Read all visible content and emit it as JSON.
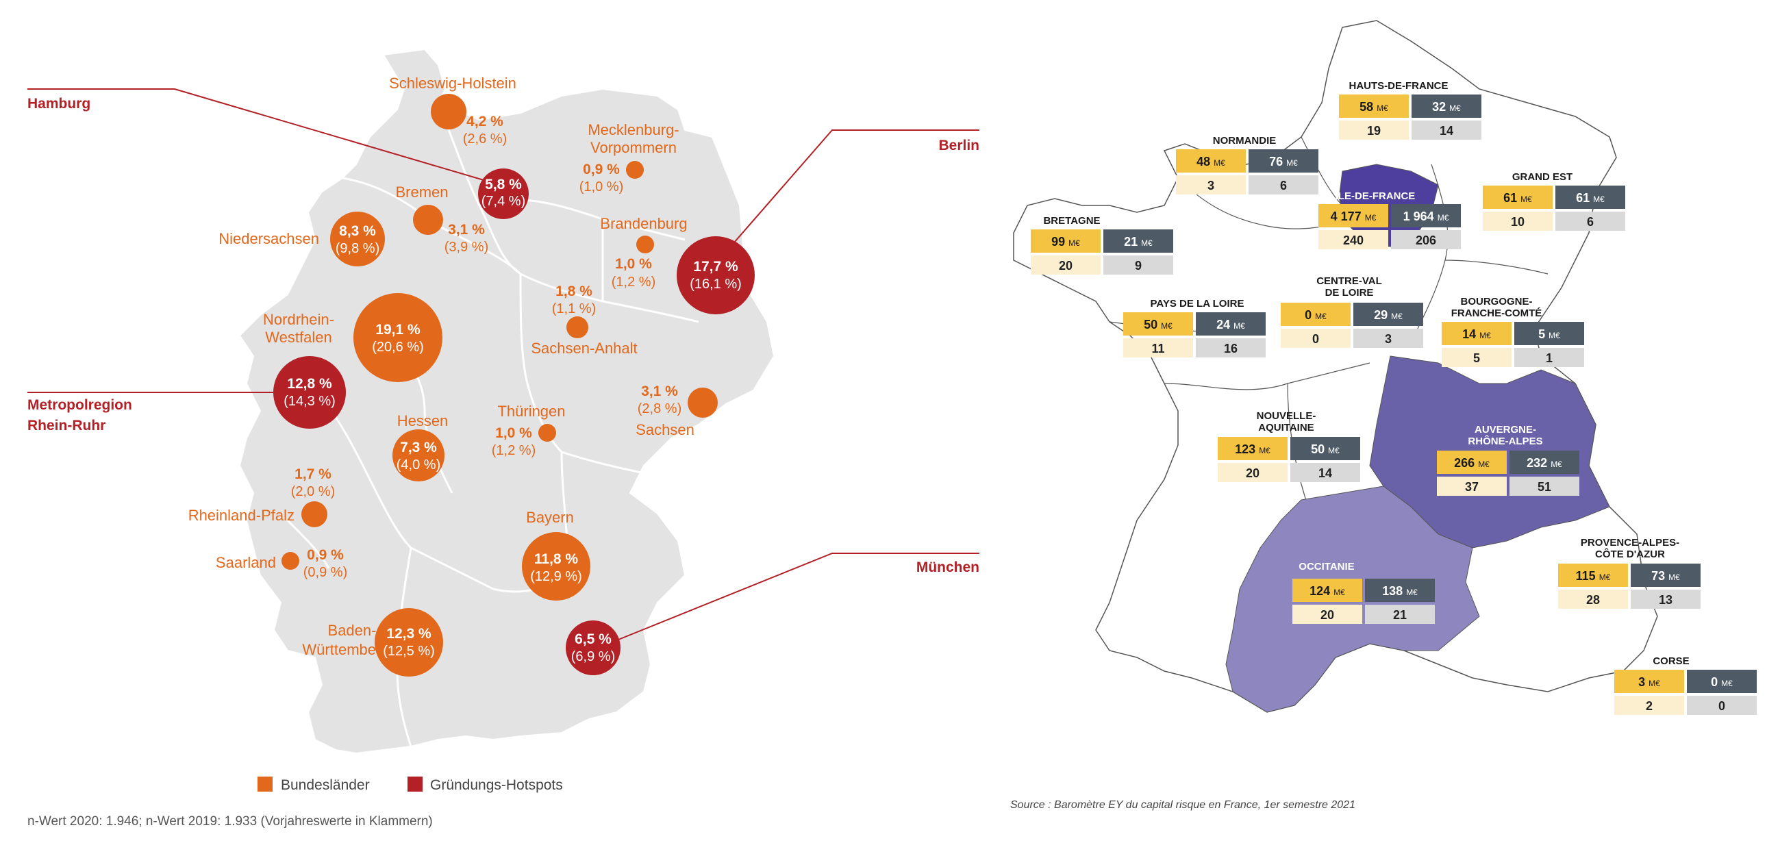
{
  "germany": {
    "states": [
      {
        "name": "Schleswig-Holstein",
        "value": "4,2 %",
        "prev": "(2,6 %)"
      },
      {
        "name": "Mecklenburg-\nVorpommern",
        "value": "0,9 %",
        "prev": "(1,0 %)"
      },
      {
        "name": "Bremen",
        "value": "3,1 %",
        "prev": "(3,9 %)"
      },
      {
        "name": "Niedersachsen",
        "value": "8,3 %",
        "prev": "(9,8 %)"
      },
      {
        "name": "Brandenburg",
        "value": "1,0 %",
        "prev": "(1,2 %)"
      },
      {
        "name": "Sachsen-Anhalt",
        "value": "1,8 %",
        "prev": "(1,1 %)"
      },
      {
        "name": "Nordrhein-\nWestfalen",
        "value": "19,1 %",
        "prev": "(20,6 %)"
      },
      {
        "name": "Sachsen",
        "value": "3,1 %",
        "prev": "(2,8 %)"
      },
      {
        "name": "Hessen",
        "value": "7,3 %",
        "prev": "(4,0 %)"
      },
      {
        "name": "Thüringen",
        "value": "1,0 %",
        "prev": "(1,2 %)"
      },
      {
        "name": "Rheinland-Pfalz",
        "value": "1,7 %",
        "prev": "(2,0 %)"
      },
      {
        "name": "Saarland",
        "value": "0,9 %",
        "prev": "(0,9 %)"
      },
      {
        "name": "Bayern",
        "value": "11,8 %",
        "prev": "(12,9 %)"
      },
      {
        "name": "Baden-\nWürttemberg",
        "value": "12,3 %",
        "prev": "(12,5 %)"
      }
    ],
    "hotspots": [
      {
        "name": "Hamburg",
        "value": "5,8 %",
        "prev": "(7,4 %)"
      },
      {
        "name": "Berlin",
        "value": "17,7 %",
        "prev": "(16,1 %)"
      },
      {
        "name": "Metropolregion\nRhein-Ruhr",
        "value": "12,8 %",
        "prev": "(14,3 %)"
      },
      {
        "name": "München",
        "value": "6,5 %",
        "prev": "(6,9 %)"
      }
    ],
    "legend": {
      "states": "Bundesländer",
      "hotspots": "Gründungs-Hotspots"
    },
    "footnote": "n-Wert 2020: 1.946; n-Wert 2019: 1.933 (Vorjahreswerte in Klammern)",
    "colors": {
      "state": "#e2681c",
      "hotspot": "#b32025",
      "land": "#e3e3e3"
    }
  },
  "france": {
    "regions": [
      {
        "name": "HAUTS-DE-FRANCE",
        "amount_a": "58",
        "amount_b": "32",
        "count_a": "19",
        "count_b": "14"
      },
      {
        "name": "NORMANDIE",
        "amount_a": "48",
        "amount_b": "76",
        "count_a": "3",
        "count_b": "6"
      },
      {
        "name": "ÎLE-DE-FRANCE",
        "amount_a": "4 177",
        "amount_b": "1 964",
        "count_a": "240",
        "count_b": "206"
      },
      {
        "name": "GRAND EST",
        "amount_a": "61",
        "amount_b": "61",
        "count_a": "10",
        "count_b": "6"
      },
      {
        "name": "BRETAGNE",
        "amount_a": "99",
        "amount_b": "21",
        "count_a": "20",
        "count_b": "9"
      },
      {
        "name": "CENTRE-VAL\nDE LOIRE",
        "amount_a": "0",
        "amount_b": "29",
        "count_a": "0",
        "count_b": "3"
      },
      {
        "name": "PAYS DE LA LOIRE",
        "amount_a": "50",
        "amount_b": "24",
        "count_a": "11",
        "count_b": "16"
      },
      {
        "name": "BOURGOGNE-\nFRANCHE-COMTÉ",
        "amount_a": "14",
        "amount_b": "5",
        "count_a": "5",
        "count_b": "1"
      },
      {
        "name": "NOUVELLE-\nAQUITAINE",
        "amount_a": "123",
        "amount_b": "50",
        "count_a": "20",
        "count_b": "14"
      },
      {
        "name": "AUVERGNE-\nRHÔNE-ALPES",
        "amount_a": "266",
        "amount_b": "232",
        "count_a": "37",
        "count_b": "51"
      },
      {
        "name": "OCCITANIE",
        "amount_a": "124",
        "amount_b": "138",
        "count_a": "20",
        "count_b": "21"
      },
      {
        "name": "PROVENCE-ALPES-\nCÔTE D'AZUR",
        "amount_a": "115",
        "amount_b": "73",
        "count_a": "28",
        "count_b": "13"
      },
      {
        "name": "CORSE",
        "amount_a": "3",
        "amount_b": "0",
        "count_a": "2",
        "count_b": "0"
      }
    ],
    "unit": "M€",
    "source": "Source : Baromètre EY du capital risque en France, 1er semestre 2021",
    "colors": {
      "amount_a": "#f5c342",
      "amount_b": "#4e5b66",
      "count_a": "#fbefd0",
      "count_b": "#d9d9d9",
      "idf": "#4e3f9e",
      "ara": "#6a62a8",
      "occ": "#8d86bf"
    }
  }
}
